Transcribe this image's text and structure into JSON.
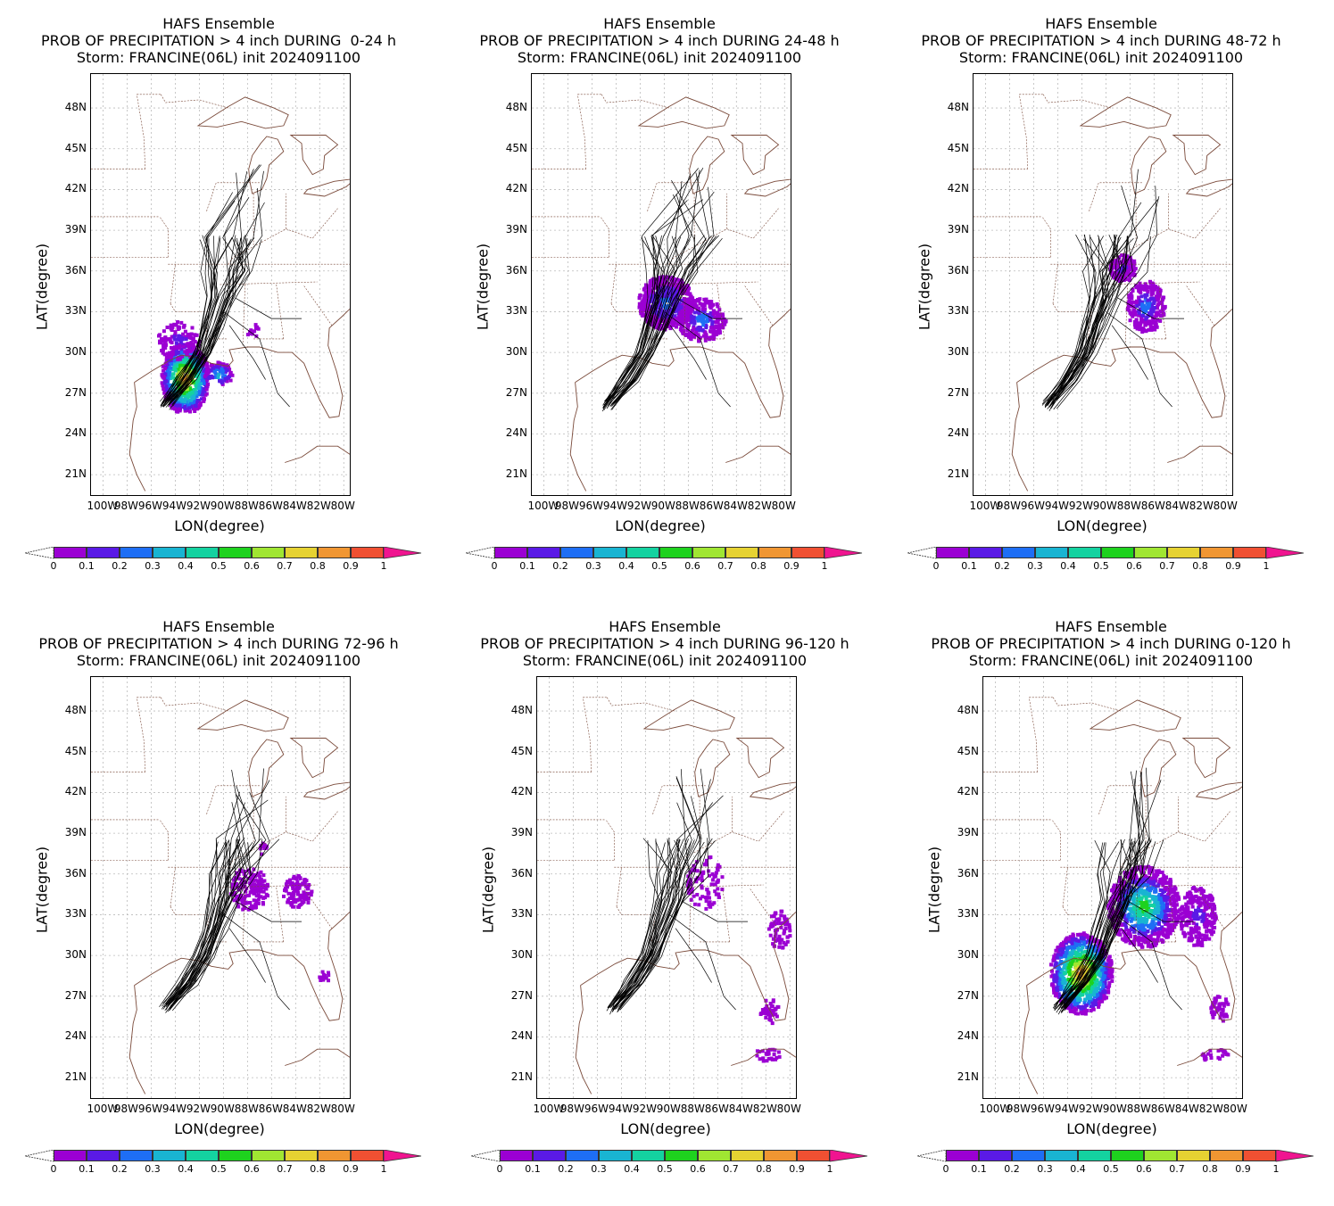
{
  "colorbar": {
    "colors": [
      "#9b00d3",
      "#5a1ae6",
      "#1e6ef5",
      "#19b4d2",
      "#14d2a0",
      "#1ed21e",
      "#a0e632",
      "#e6d232",
      "#f09632",
      "#f05032"
    ],
    "arrow_high": "#f01490",
    "ticks": [
      "0",
      "0.1",
      "0.2",
      "0.3",
      "0.4",
      "0.5",
      "0.6",
      "0.7",
      "0.8",
      "0.9",
      "1"
    ]
  },
  "axes": {
    "xlabel": "LON(degree)",
    "ylabel": "LAT(degree)",
    "yticks": [
      "48N",
      "45N",
      "42N",
      "39N",
      "36N",
      "33N",
      "30N",
      "27N",
      "24N",
      "21N"
    ],
    "xticks": [
      "100W",
      "98W",
      "96W",
      "94W",
      "92W",
      "90W",
      "88W",
      "86W",
      "84W",
      "82W",
      "80W"
    ]
  },
  "panels": [
    {
      "line1": "HAFS Ensemble",
      "line2": "PROB OF PRECIPITATION > 4 inch DURING  0-24 h",
      "line3": "Storm: FRANCINE(06L) init 2024091100",
      "layout": "a"
    },
    {
      "line1": "HAFS Ensemble",
      "line2": "PROB OF PRECIPITATION > 4 inch DURING 24-48 h",
      "line3": "Storm: FRANCINE(06L) init 2024091100",
      "layout": "b"
    },
    {
      "line1": "HAFS Ensemble",
      "line2": "PROB OF PRECIPITATION > 4 inch DURING 48-72 h",
      "line3": "Storm: FRANCINE(06L) init 2024091100",
      "layout": "c"
    },
    {
      "line1": "HAFS Ensemble",
      "line2": "PROB OF PRECIPITATION > 4 inch DURING 72-96 h",
      "line3": "Storm: FRANCINE(06L) init 2024091100",
      "layout": "d"
    },
    {
      "line1": "HAFS Ensemble",
      "line2": "PROB OF PRECIPITATION > 4 inch DURING 96-120 h",
      "line3": "Storm: FRANCINE(06L) init 2024091100",
      "layout": "e"
    },
    {
      "line1": "HAFS Ensemble",
      "line2": "PROB OF PRECIPITATION > 4 inch DURING 0-120 h",
      "line3": "Storm: FRANCINE(06L) init 2024091100",
      "layout": "f"
    }
  ]
}
